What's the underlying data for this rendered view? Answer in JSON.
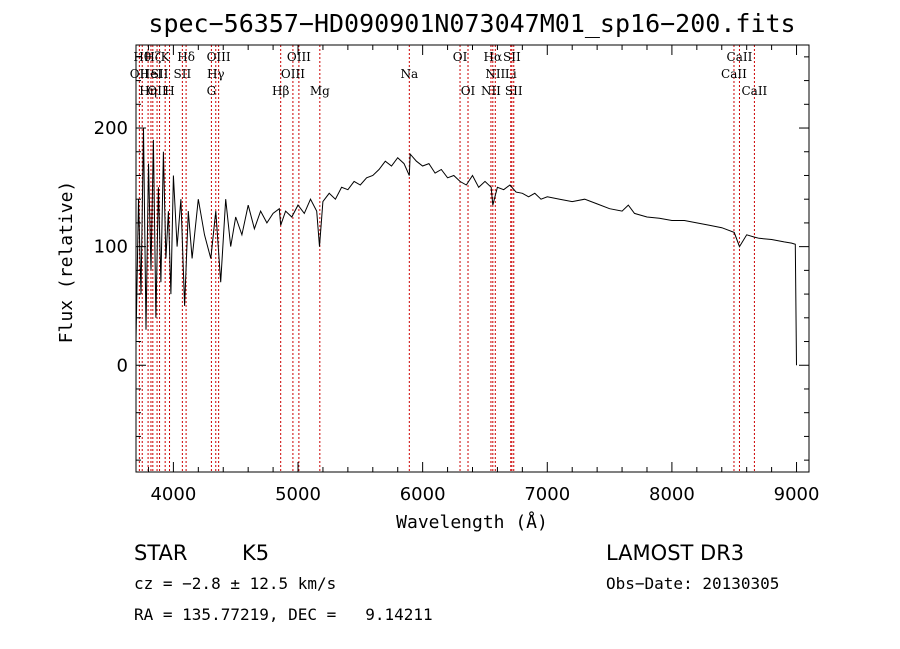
{
  "chart_data": {
    "type": "line",
    "title": "spec−56357−HD090901N073047M01_sp16−200.fits",
    "xlabel": "Wavelength (Å)",
    "ylabel": "Flux (relative)",
    "xlim": [
      3700,
      9100
    ],
    "ylim": [
      -90,
      270
    ],
    "x_ticks": [
      4000,
      5000,
      6000,
      7000,
      8000,
      9000
    ],
    "y_ticks": [
      0,
      100,
      200
    ],
    "grid": false,
    "line_color": "#000000",
    "marker_color": "#cc0000",
    "series": [
      {
        "name": "flux",
        "x": [
          3700,
          3720,
          3740,
          3760,
          3780,
          3800,
          3820,
          3840,
          3860,
          3880,
          3900,
          3920,
          3940,
          3960,
          3980,
          4000,
          4030,
          4060,
          4090,
          4120,
          4150,
          4200,
          4250,
          4300,
          4340,
          4380,
          4420,
          4460,
          4500,
          4550,
          4600,
          4650,
          4700,
          4750,
          4800,
          4850,
          4861,
          4900,
          4950,
          5000,
          5050,
          5100,
          5150,
          5172,
          5200,
          5250,
          5300,
          5350,
          5400,
          5450,
          5500,
          5550,
          5600,
          5650,
          5700,
          5750,
          5800,
          5850,
          5893,
          5900,
          5950,
          6000,
          6050,
          6100,
          6150,
          6200,
          6250,
          6300,
          6350,
          6400,
          6450,
          6500,
          6550,
          6563,
          6600,
          6650,
          6700,
          6750,
          6800,
          6850,
          6900,
          6950,
          7000,
          7100,
          7200,
          7300,
          7400,
          7500,
          7600,
          7650,
          7700,
          7800,
          7900,
          8000,
          8100,
          8200,
          8300,
          8400,
          8500,
          8542,
          8600,
          8662,
          8700,
          8800,
          8900,
          8960,
          8990,
          9000
        ],
        "y": [
          20,
          140,
          60,
          200,
          30,
          170,
          80,
          190,
          40,
          150,
          70,
          180,
          90,
          130,
          60,
          160,
          100,
          140,
          50,
          130,
          90,
          140,
          110,
          90,
          130,
          70,
          140,
          100,
          125,
          110,
          135,
          115,
          130,
          120,
          128,
          132,
          118,
          130,
          125,
          135,
          128,
          140,
          130,
          100,
          138,
          145,
          140,
          150,
          148,
          155,
          152,
          158,
          160,
          165,
          172,
          168,
          175,
          170,
          160,
          178,
          172,
          168,
          170,
          162,
          165,
          158,
          160,
          155,
          152,
          160,
          150,
          155,
          150,
          135,
          150,
          148,
          152,
          146,
          145,
          142,
          145,
          140,
          142,
          140,
          138,
          140,
          136,
          132,
          130,
          135,
          128,
          125,
          124,
          122,
          122,
          120,
          118,
          116,
          112,
          100,
          110,
          108,
          107,
          106,
          104,
          103,
          102,
          0
        ]
      }
    ],
    "line_markers": [
      {
        "x": 3727,
        "row": 1,
        "label": "OII"
      },
      {
        "x": 3750,
        "row": 0,
        "label": "Hθ"
      },
      {
        "x": 3797,
        "row": 2,
        "label": "Hη"
      },
      {
        "x": 3820,
        "row": 1,
        "label": "HeI"
      },
      {
        "x": 3835,
        "row": 0,
        "label": "Hζ"
      },
      {
        "x": 3869,
        "row": 2,
        "label": "OII"
      },
      {
        "x": 3889,
        "row": 1,
        "label": "SII"
      },
      {
        "x": 3934,
        "row": 0,
        "label": "K"
      },
      {
        "x": 3969,
        "row": 2,
        "label": "H"
      },
      {
        "x": 4102,
        "row": 0,
        "label": "Hδ"
      },
      {
        "x": 4072,
        "row": 1,
        "label": "SII"
      },
      {
        "x": 4305,
        "row": 2,
        "label": "G"
      },
      {
        "x": 4340,
        "row": 1,
        "label": "Hγ"
      },
      {
        "x": 4363,
        "row": 0,
        "label": "OIII"
      },
      {
        "x": 4861,
        "row": 2,
        "label": "Hβ"
      },
      {
        "x": 4959,
        "row": 1,
        "label": "OIII"
      },
      {
        "x": 5007,
        "row": 0,
        "label": "OIII"
      },
      {
        "x": 5175,
        "row": 2,
        "label": "Mg"
      },
      {
        "x": 5893,
        "row": 1,
        "label": "Na"
      },
      {
        "x": 6300,
        "row": 0,
        "label": "OI"
      },
      {
        "x": 6364,
        "row": 2,
        "label": "OI"
      },
      {
        "x": 6548,
        "row": 2,
        "label": "NII"
      },
      {
        "x": 6563,
        "row": 0,
        "label": "Hα"
      },
      {
        "x": 6583,
        "row": 1,
        "label": "NII"
      },
      {
        "x": 6707,
        "row": 1,
        "label": "Li"
      },
      {
        "x": 6716,
        "row": 0,
        "label": "SII"
      },
      {
        "x": 6731,
        "row": 2,
        "label": "SII"
      },
      {
        "x": 8498,
        "row": 1,
        "label": "CaII"
      },
      {
        "x": 8542,
        "row": 0,
        "label": "CaII"
      },
      {
        "x": 8662,
        "row": 2,
        "label": "CaII"
      }
    ]
  },
  "info": {
    "class_label": "STAR",
    "subclass": "K5",
    "survey": "LAMOST DR3",
    "cz": "cz = −2.8 ± 12.5 km/s",
    "obs_date": "Obs−Date: 20130305",
    "coords": "RA = 135.77219, DEC =   9.14211"
  }
}
